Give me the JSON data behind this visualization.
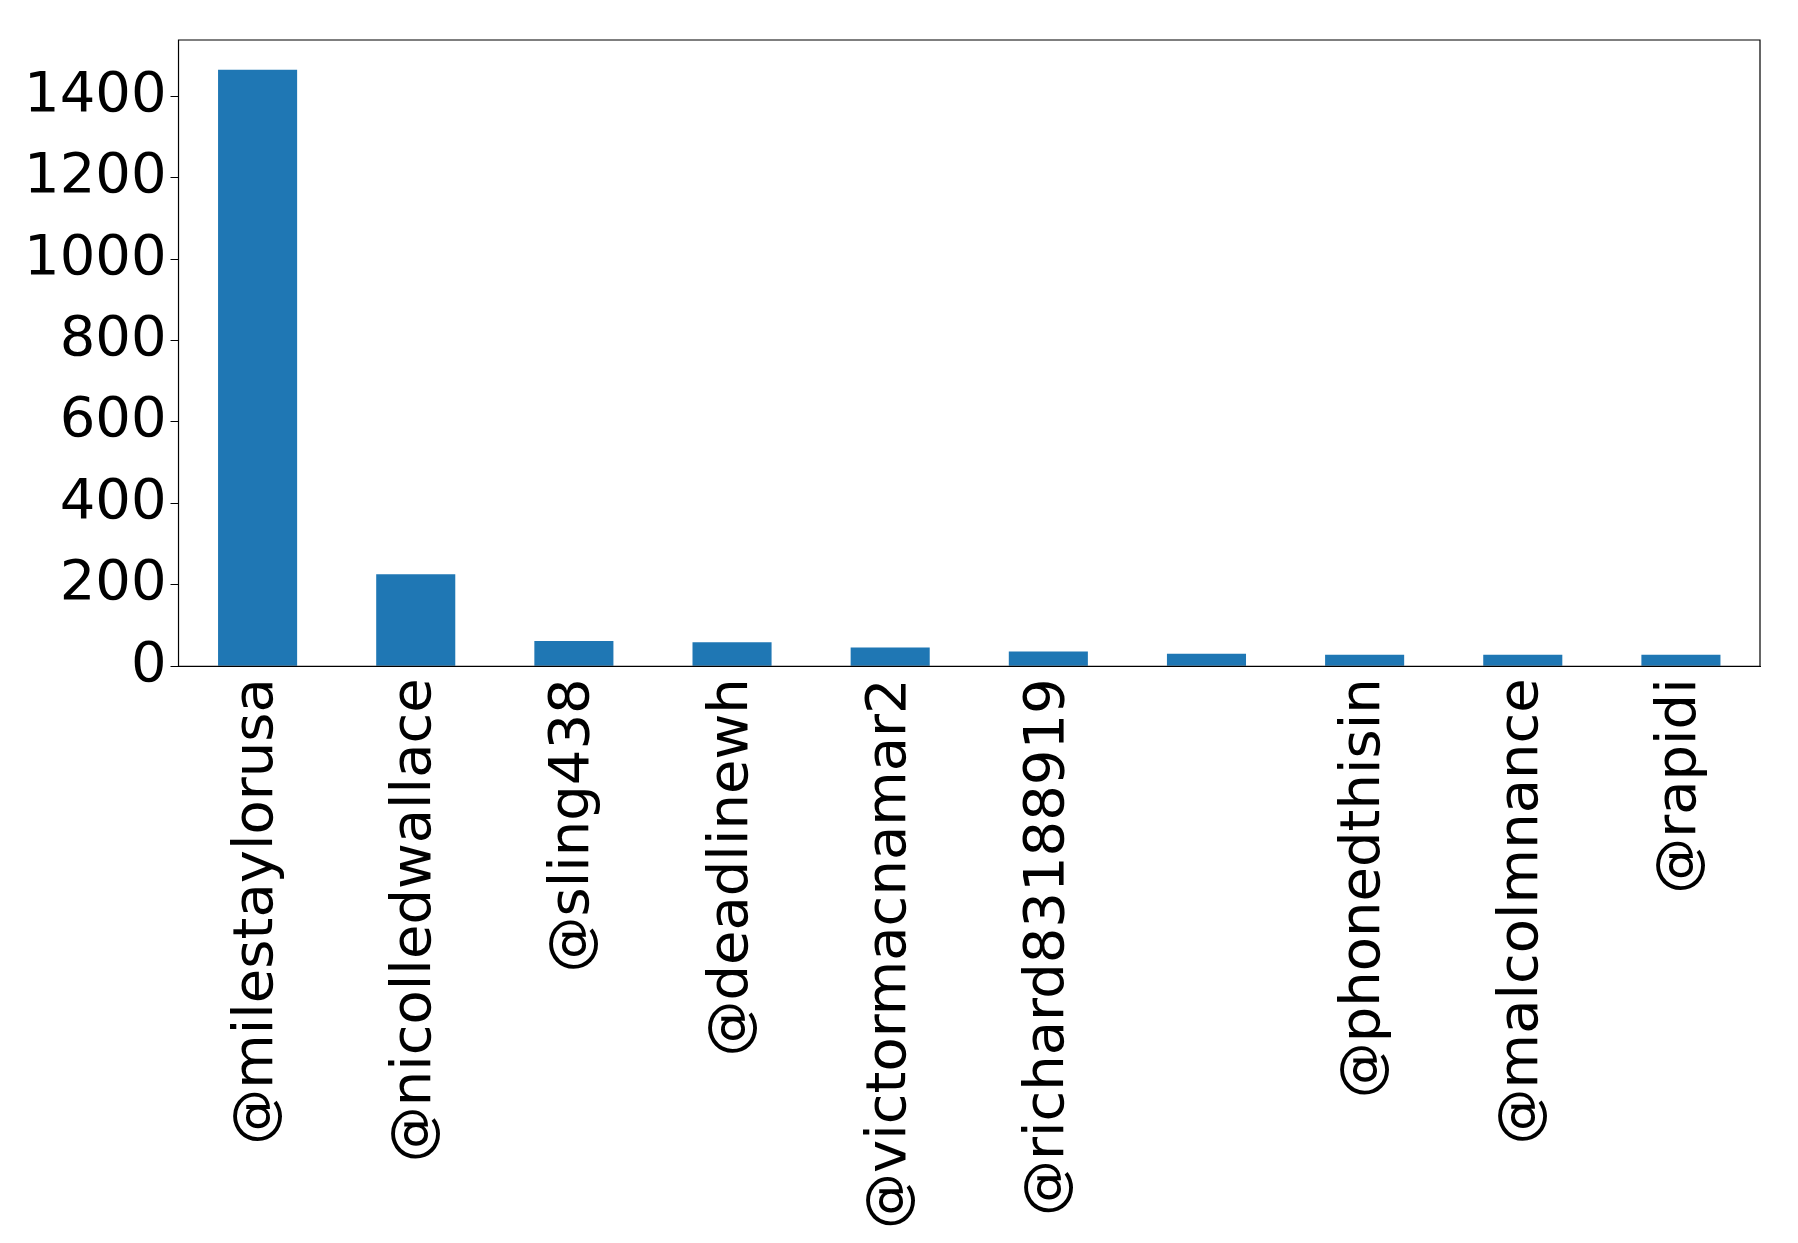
{
  "chart_data": {
    "type": "bar",
    "categories": [
      "@milestaylorusa",
      "@nicolledwallace",
      "@sling438",
      "@deadlinewh",
      "@victormacnamar2",
      "@richard83188919",
      null,
      "@phonedthisin",
      "@malcolmnance",
      "@rapidi"
    ],
    "values": [
      1465,
      226,
      62,
      59,
      46,
      36,
      31,
      28,
      28,
      28
    ],
    "color": "#1f77b4",
    "ylim": [
      0,
      1538
    ],
    "yticks": [
      0,
      200,
      400,
      600,
      800,
      1000,
      1200,
      1400
    ],
    "grid": false,
    "legend": false
  }
}
